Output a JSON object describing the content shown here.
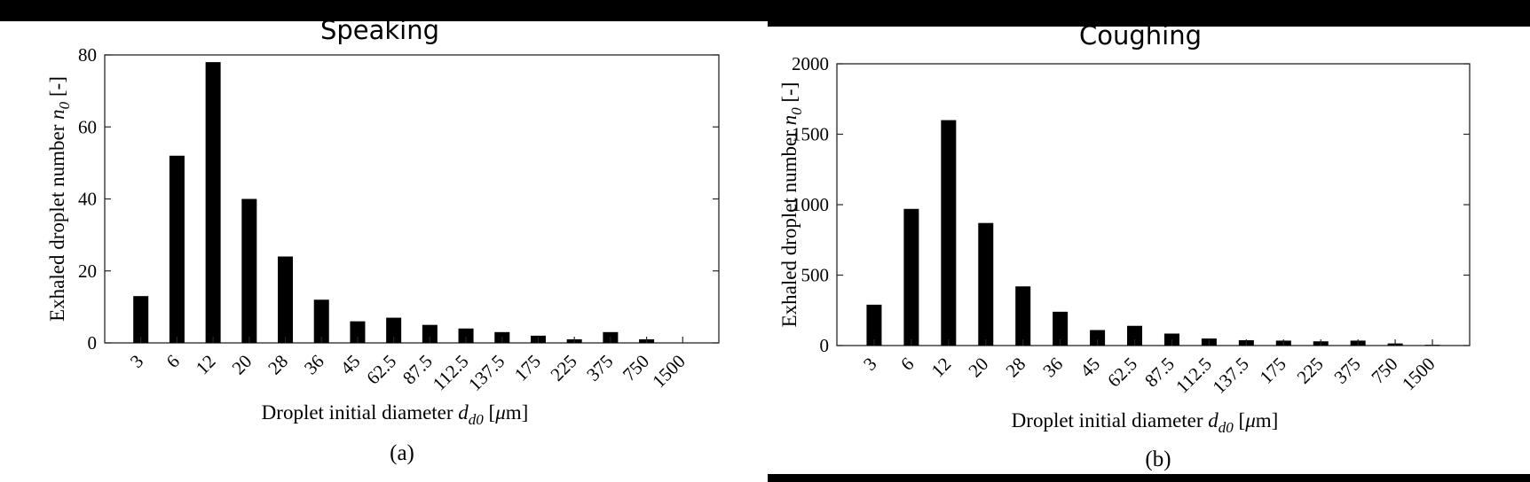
{
  "chart_data": [
    {
      "type": "bar",
      "title": "Speaking",
      "xlabel": "Droplet initial diameter",
      "xlabel_symbol": "d",
      "xlabel_subscript": "d0",
      "xlabel_unit_open": " [",
      "xlabel_unit_mu": "μ",
      "xlabel_unit_close": "m]",
      "ylabel": "Exhaled droplet number ",
      "ylabel_symbol": "n",
      "ylabel_subscript": "0",
      "ylabel_unit": " [-]",
      "caption": "(a)",
      "categories": [
        "3",
        "6",
        "12",
        "20",
        "28",
        "36",
        "45",
        "62.5",
        "87.5",
        "112.5",
        "137.5",
        "175",
        "225",
        "375",
        "750",
        "1500"
      ],
      "values": [
        13,
        52,
        78,
        40,
        24,
        12,
        6,
        7,
        5,
        4,
        3,
        2,
        1,
        3,
        1,
        0
      ],
      "ylim": [
        0,
        80
      ],
      "yticks": [
        "0",
        "20",
        "40",
        "60",
        "80"
      ],
      "bar_color": "#000000"
    },
    {
      "type": "bar",
      "title": "Coughing",
      "xlabel": "Droplet initial diameter",
      "xlabel_symbol": "d",
      "xlabel_subscript": "d0",
      "xlabel_unit_open": " [",
      "xlabel_unit_mu": "μ",
      "xlabel_unit_close": "m]",
      "ylabel": "Exhaled droplet number ",
      "ylabel_symbol": "n",
      "ylabel_subscript": "0",
      "ylabel_unit": " [-]",
      "caption": "(b)",
      "categories": [
        "3",
        "6",
        "12",
        "20",
        "28",
        "36",
        "45",
        "62.5",
        "87.5",
        "112.5",
        "137.5",
        "175",
        "225",
        "375",
        "750",
        "1500"
      ],
      "values": [
        290,
        970,
        1600,
        870,
        420,
        240,
        110,
        140,
        85,
        50,
        38,
        35,
        30,
        35,
        15,
        5
      ],
      "ylim": [
        0,
        2000
      ],
      "yticks": [
        "0",
        "500",
        "1000",
        "1500",
        "2000"
      ],
      "bar_color": "#000000"
    }
  ]
}
